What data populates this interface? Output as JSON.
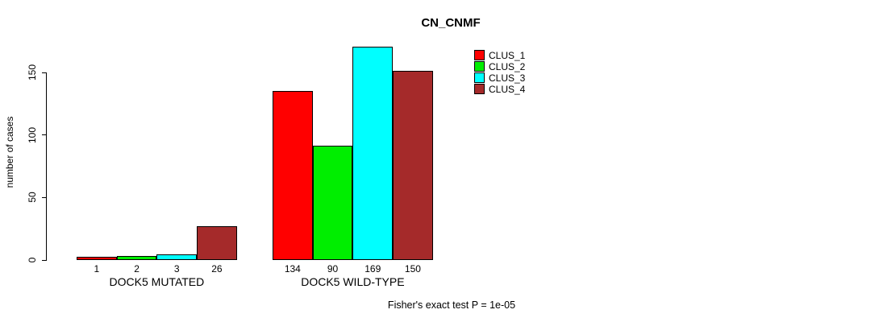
{
  "chart_data": {
    "type": "bar",
    "title": "CN_CNMF",
    "ylabel": "number of cases",
    "xlabel": "",
    "footer": "Fisher's exact test P = 1e-05",
    "yticks": [
      0,
      50,
      100,
      150
    ],
    "ylim": [
      0,
      169
    ],
    "grid": false,
    "legend_position": "top-right",
    "bar_value_labels_shown": true,
    "groups": [
      {
        "label": "DOCK5 MUTATED",
        "values": [
          1,
          2,
          3,
          26
        ]
      },
      {
        "label": "DOCK5 WILD-TYPE",
        "values": [
          134,
          90,
          169,
          150
        ]
      }
    ],
    "series": [
      {
        "name": "CLUS_1",
        "color": "#ff0000"
      },
      {
        "name": "CLUS_2",
        "color": "#00ee00"
      },
      {
        "name": "CLUS_3",
        "color": "#00ffff"
      },
      {
        "name": "CLUS_4",
        "color": "#a52a2a"
      }
    ],
    "colors": {
      "background": "#ffffff",
      "axis": "#000000",
      "text": "#000000",
      "bar_border": "#000000"
    }
  }
}
